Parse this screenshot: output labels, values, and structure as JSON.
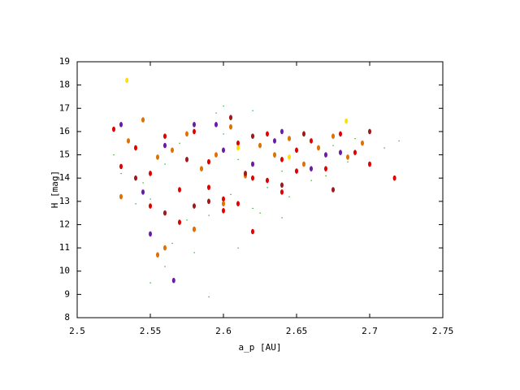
{
  "chart_data": {
    "type": "scatter",
    "xlabel": "a_p [AU]",
    "ylabel": "H [mag]",
    "xlim": [
      2.5,
      2.75
    ],
    "xticks": [
      2.5,
      2.55,
      2.6,
      2.65,
      2.7,
      2.75
    ],
    "ylim": [
      8,
      19
    ],
    "yticks": [
      8,
      9,
      10,
      11,
      12,
      13,
      14,
      15,
      16,
      17,
      18,
      19
    ],
    "grid": false,
    "series": [
      {
        "color": "#00a000",
        "marker": "dot",
        "x": [
          2.53,
          2.55,
          2.57,
          2.59,
          2.61,
          2.63,
          2.65,
          2.67,
          2.69,
          2.71,
          2.54,
          2.56,
          2.58,
          2.6,
          2.62,
          2.64,
          2.66,
          2.68,
          2.7,
          2.72,
          2.525,
          2.545,
          2.575,
          2.605,
          2.635,
          2.655,
          2.685,
          2.565,
          2.595,
          2.625,
          2.645,
          2.675,
          2.55,
          2.58,
          2.61,
          2.62,
          2.64,
          2.56,
          2.6,
          2.59
        ],
        "values": [
          14.2,
          13.1,
          15.5,
          12.4,
          14.8,
          13.6,
          15.2,
          14.1,
          15.7,
          15.3,
          12.9,
          14.6,
          11.8,
          15.9,
          12.7,
          14.3,
          13.9,
          15.1,
          14.6,
          15.6,
          15.0,
          13.8,
          12.2,
          13.3,
          14.9,
          16.0,
          14.7,
          11.2,
          16.8,
          12.5,
          13.2,
          15.4,
          9.5,
          10.8,
          11.0,
          16.9,
          12.3,
          10.2,
          17.1,
          8.9
        ]
      },
      {
        "color": "#e00000",
        "marker": "ellipse",
        "x": [
          2.525,
          2.54,
          2.55,
          2.56,
          2.57,
          2.58,
          2.59,
          2.6,
          2.61,
          2.62,
          2.63,
          2.64,
          2.65,
          2.66,
          2.67,
          2.68,
          2.69,
          2.7,
          2.55,
          2.57,
          2.59,
          2.61,
          2.63,
          2.65,
          2.58,
          2.6,
          2.62,
          2.64,
          2.53,
          2.717
        ],
        "values": [
          16.1,
          15.3,
          14.2,
          15.8,
          13.5,
          16.0,
          14.7,
          13.1,
          15.5,
          14.0,
          15.9,
          14.8,
          15.2,
          15.6,
          14.4,
          15.9,
          15.1,
          14.6,
          12.8,
          12.1,
          13.6,
          12.9,
          13.9,
          14.3,
          11.8,
          12.6,
          11.7,
          13.4,
          14.5,
          14.0
        ]
      },
      {
        "color": "#e07000",
        "marker": "ellipse",
        "x": [
          2.535,
          2.545,
          2.555,
          2.565,
          2.575,
          2.585,
          2.595,
          2.605,
          2.615,
          2.625,
          2.635,
          2.645,
          2.655,
          2.665,
          2.675,
          2.685,
          2.695,
          2.555,
          2.56,
          2.58,
          2.6,
          2.53
        ],
        "values": [
          15.6,
          16.5,
          14.9,
          15.2,
          15.9,
          14.4,
          15.0,
          16.2,
          14.1,
          15.4,
          15.0,
          15.7,
          14.6,
          15.3,
          15.8,
          14.9,
          15.5,
          10.7,
          11.0,
          11.8,
          12.9,
          13.2
        ]
      },
      {
        "color": "#6a1aa8",
        "marker": "ellipse",
        "x": [
          2.53,
          2.545,
          2.56,
          2.58,
          2.6,
          2.62,
          2.64,
          2.66,
          2.68,
          2.566,
          2.55,
          2.595,
          2.635,
          2.67
        ],
        "values": [
          16.3,
          13.4,
          15.4,
          16.3,
          15.2,
          14.6,
          16.0,
          14.4,
          15.1,
          9.6,
          11.6,
          16.3,
          15.6,
          15.0
        ]
      },
      {
        "color": "#a01818",
        "marker": "ellipse",
        "x": [
          2.54,
          2.56,
          2.575,
          2.59,
          2.605,
          2.62,
          2.64,
          2.655,
          2.675,
          2.7,
          2.58,
          2.615
        ],
        "values": [
          14.0,
          12.5,
          14.8,
          13.0,
          16.6,
          15.8,
          13.7,
          15.9,
          13.5,
          16.0,
          12.8,
          14.2
        ]
      },
      {
        "color": "#ffe000",
        "marker": "ellipse",
        "x": [
          2.534,
          2.684,
          2.61,
          2.645
        ],
        "values": [
          18.2,
          16.45,
          15.3,
          14.9
        ]
      }
    ]
  }
}
